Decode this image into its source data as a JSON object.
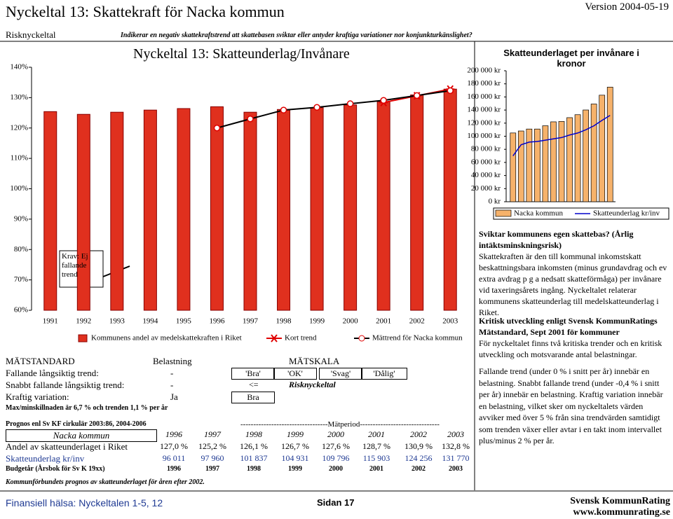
{
  "header": {
    "title": "Nyckeltal 13: Skattekraft för Nacka kommun",
    "version": "Version 2004-05-19",
    "subtitle": "Risknyckeltal",
    "question": "Indikerar en negativ skattekraftstrend att skattebasen sviktar eller antyder kraftiga variationer nor konjunkturkänslighet?"
  },
  "chart_data": [
    {
      "type": "bar",
      "title": "Nyckeltal 13: Skatteunderlag/Invånare",
      "annotation": "Krav: Ej fallande trend",
      "categories": [
        "1991",
        "1992",
        "1993",
        "1994",
        "1995",
        "1996",
        "1997",
        "1998",
        "1999",
        "2000",
        "2001",
        "2002",
        "2003"
      ],
      "series": [
        {
          "name": "Kommunens andel av medelskattekraften i Riket",
          "color": "#e0301e",
          "values": [
            125.4,
            124.5,
            125.2,
            125.9,
            126.4,
            127.0,
            125.2,
            126.1,
            126.7,
            127.6,
            128.7,
            130.9,
            132.8
          ]
        },
        {
          "name": "Kort trend",
          "type": "line",
          "marker": "asterisk",
          "color": "#e00000",
          "values": [
            null,
            null,
            null,
            null,
            null,
            null,
            null,
            null,
            null,
            null,
            128.4,
            130.6,
            132.8
          ]
        },
        {
          "name": "Mättrend för Nacka kommun",
          "type": "line",
          "marker": "circle",
          "color": "#000000",
          "values": [
            null,
            null,
            null,
            null,
            null,
            120.0,
            123.0,
            125.9,
            126.8,
            128.0,
            129.1,
            130.7,
            132.3
          ]
        }
      ],
      "ylim": [
        60,
        140
      ],
      "yticks": [
        {
          "value": 60,
          "label": "60%"
        },
        {
          "value": 70,
          "label": "70%"
        },
        {
          "value": 80,
          "label": "80%"
        },
        {
          "value": 90,
          "label": "90%"
        },
        {
          "value": 100,
          "label": "100%"
        },
        {
          "value": 110,
          "label": "110%"
        },
        {
          "value": 120,
          "label": "120%"
        },
        {
          "value": 130,
          "label": "130%"
        },
        {
          "value": 140,
          "label": "140%"
        }
      ]
    },
    {
      "type": "bar",
      "title": "Skatteunderlaget per invånare i kronor",
      "categories": [
        null,
        null,
        null,
        null,
        null,
        null,
        null,
        null,
        null,
        null,
        null,
        null,
        null
      ],
      "series": [
        {
          "name": "Nacka kommun",
          "color": "#f6b26b",
          "values": [
            105000,
            108000,
            111000,
            111000,
            116000,
            122000,
            122600,
            128400,
            132900,
            140100,
            149200,
            162700,
            175000
          ]
        },
        {
          "name": "Skatteunderlag kr/inv",
          "type": "line",
          "color": "#0000cc",
          "values": [
            70000,
            87000,
            91000,
            92000,
            94000,
            96011,
            97960,
            101837,
            104931,
            109796,
            115903,
            124256,
            131770
          ]
        }
      ],
      "ylim": [
        0,
        200000
      ],
      "yticks": [
        {
          "value": 0,
          "label": "0 kr"
        },
        {
          "value": 20000,
          "label": "20 000 kr"
        },
        {
          "value": 40000,
          "label": "40 000 kr"
        },
        {
          "value": 60000,
          "label": "60 000 kr"
        },
        {
          "value": 80000,
          "label": "80 000 kr"
        },
        {
          "value": 100000,
          "label": "100 000 kr"
        },
        {
          "value": 120000,
          "label": "120 000 kr"
        },
        {
          "value": 140000,
          "label": "140 000 kr"
        },
        {
          "value": 160000,
          "label": "160 000 kr"
        },
        {
          "value": 180000,
          "label": "180 000 kr"
        },
        {
          "value": 200000,
          "label": "200 000 kr"
        }
      ]
    }
  ],
  "text": {
    "heading1": "Sviktar kommunens egen skattebas? (Årlig intäktsminskningsrisk)",
    "para1": "Skattekraften är den till kommunal inkomstskatt beskattningsbara inkomsten (minus grundavdrag och ev extra avdrag p g a nedsatt skatteförmåga) per invånare vid taxeringsårets ingång. Nyckeltalet relaterar kommunens skatteunderlag till medelskatteunderlag i Riket.",
    "heading2": "Kritisk utveckling enligt Svensk KommunRatings Mätstandard, Sept 2001 för kommuner",
    "para2": "För nyckeltalet finns två kritiska trender och en kritisk utveckling och motsvarande antal belastningar.",
    "para3": "Fallande trend (under 0 % i snitt per år) innebär en belastning. Snabbt fallande trend (under -0,4 % i snitt per år) innebär en belastning. Kraftig variation innebär en belastning, vilket sker om nyckeltalets värden avviker med över 5 % från sina trendvärden samtidigt som trenden växer eller avtar i en takt inom intervallet plus/minus 2 % per år."
  },
  "standard": {
    "headers": [
      "MÄTSTANDARD",
      "Belastning",
      "MÄTSKALA"
    ],
    "rows": [
      {
        "label": "Fallande långsiktig trend:",
        "load": "-",
        "scale": [
          "'Bra'",
          "'OK'",
          "'Svag'",
          "'Dålig'"
        ]
      },
      {
        "label": "Snabbt fallande långsiktig trend:",
        "load": "-",
        "scale": [
          "<=",
          "Risknyckeltal"
        ]
      },
      {
        "label": "Kraftig variation:",
        "load": "Ja",
        "scale": [
          "Bra"
        ]
      }
    ],
    "note": "Max/minskillnaden är 6,7 % och trenden 1,1 % per år"
  },
  "forecast": {
    "source": "Prognos enl Sv KF cirkulär 2003:86, 2004-2006",
    "period": "----------------------------------Mätperiod-------------------------------",
    "rows": [
      {
        "label": "Nacka kommun",
        "cells": [
          "1996",
          "1997",
          "1998",
          "1999",
          "2000",
          "2001",
          "2002",
          "2003"
        ]
      },
      {
        "label": "Andel av skatteunderlaget i Riket",
        "cells": [
          "127,0 %",
          "125,2 %",
          "126,1 %",
          "126,7 %",
          "127,6 %",
          "128,7 %",
          "130,9 %",
          "132,8 %"
        ]
      },
      {
        "label": "Skatteunderlag kr/inv",
        "cells": [
          "96 011",
          "97 960",
          "101 837",
          "104 931",
          "109 796",
          "115 903",
          "124 256",
          "131 770"
        ]
      },
      {
        "label": "Budgetår (Årsbok för Sv K 19xx)",
        "cells": [
          "1996",
          "1997",
          "1998",
          "1999",
          "2000",
          "2001",
          "2002",
          "2003"
        ]
      }
    ],
    "note": "Kommunförbundets prognos av skatteunderlaget för åren efter 2002."
  },
  "footer": {
    "left": "Finansiell hälsa: Nyckeltalen 1-5, 12",
    "page": "Sidan 17",
    "org": "Svensk KommunRating",
    "url": "www.kommunrating.se"
  }
}
